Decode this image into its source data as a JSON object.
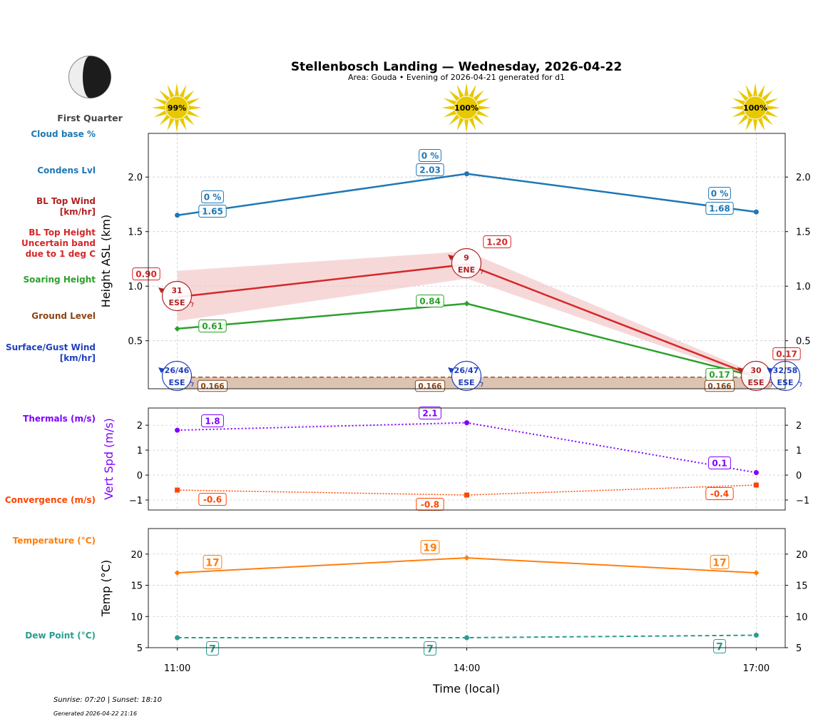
{
  "header": {
    "title": "Stellenbosch Landing — Wednesday, 2026-04-22",
    "subtitle": "Area: Gouda • Evening of 2026-04-21 generated for d1"
  },
  "moon": {
    "phase": "First Quarter",
    "icon": "moon-first-quarter-icon"
  },
  "sun": {
    "icon": "sun-icon",
    "values": [
      "99%",
      "100%",
      "100%"
    ]
  },
  "footer": {
    "sun_times": "Sunrise: 07:20 | Sunset: 18:10",
    "generated": "Generated 2026-04-22 21:16"
  },
  "side_labels": {
    "cloud_base": "Cloud base %",
    "condens": "Condens Lvl",
    "bl_top_wind": [
      "BL Top Wind",
      "[km/hr]"
    ],
    "bl_top_height": [
      "BL Top Height",
      "Uncertain band",
      "due to 1 deg C"
    ],
    "soaring": "Soaring Height",
    "ground": "Ground Level",
    "surface_wind": [
      "Surface/Gust Wind",
      "[km/hr]"
    ],
    "thermals": "Thermals (m/s)",
    "convergence": "Convergence (m/s)",
    "temperature": "Temperature (°C)",
    "dew_point": "Dew Point (°C)"
  },
  "colors": {
    "cloud": "#1f77b4",
    "bl_top": "#d62728",
    "band": "#f4c7c9",
    "soaring": "#2ca02c",
    "ground": "#8b4513",
    "ground_fill": "#dcc3b2",
    "surface_wind": "#1f3fbf",
    "thermals": "#7f00ff",
    "convergence": "#ff4500",
    "temperature": "#ff7f0e",
    "dew": "#2a9d8f",
    "sun": "#e8c800"
  },
  "chart_data": [
    {
      "type": "line",
      "ylabel": "Height ASL (km)",
      "x": [
        "11:00",
        "14:00",
        "17:00"
      ],
      "ylim": [
        0.06,
        2.4
      ],
      "yticks": [
        "0.5",
        "1.0",
        "1.5",
        "2.0"
      ],
      "grid": true,
      "series": [
        {
          "key": "condens",
          "values": [
            1.65,
            2.03,
            1.68
          ],
          "labels": [
            "1.65",
            "2.03",
            "1.68"
          ],
          "cloud_pct": [
            "0 %",
            "0 %",
            "0 %"
          ]
        },
        {
          "key": "bl_top",
          "values": [
            0.9,
            1.2,
            0.17
          ],
          "labels": [
            "0.90",
            "1.20",
            "0.17"
          ],
          "band_low": [
            0.68,
            1.07,
            0.15
          ],
          "band_high": [
            1.14,
            1.32,
            0.2
          ]
        },
        {
          "key": "soaring",
          "values": [
            0.61,
            0.84,
            0.17
          ],
          "labels": [
            "0.61",
            "0.84",
            "0.17"
          ]
        },
        {
          "key": "ground",
          "values": [
            0.166,
            0.166,
            0.166
          ],
          "labels": [
            "0.166",
            "0.166",
            "0.166"
          ]
        }
      ],
      "bl_top_wind": [
        {
          "speed": "31",
          "dir": "ESE"
        },
        {
          "speed": "9",
          "dir": "ENE"
        },
        {
          "speed": "30",
          "dir": "ESE"
        }
      ],
      "surface_wind": [
        {
          "speed": "26/46",
          "dir": "ESE"
        },
        {
          "speed": "26/47",
          "dir": "ESE"
        },
        {
          "speed": "32/58",
          "dir": "ESE"
        }
      ]
    },
    {
      "type": "line",
      "ylabel": "Vert Spd (m/s)",
      "x": [
        "11:00",
        "14:00",
        "17:00"
      ],
      "ylim": [
        -1.4,
        2.69
      ],
      "yticks": [
        "−1",
        "0",
        "1",
        "2"
      ],
      "grid": true,
      "series": [
        {
          "key": "thermals",
          "values": [
            1.8,
            2.1,
            0.1
          ],
          "labels": [
            "1.8",
            "2.1",
            "0.1"
          ]
        },
        {
          "key": "convergence",
          "values": [
            -0.6,
            -0.8,
            -0.4
          ],
          "labels": [
            "-0.6",
            "-0.8",
            "-0.4"
          ]
        }
      ]
    },
    {
      "type": "line",
      "ylabel": "Temp (°C)",
      "xlabel": "Time (local)",
      "x": [
        "11:00",
        "14:00",
        "17:00"
      ],
      "ylim": [
        5,
        24.1
      ],
      "yticks": [
        "5",
        "10",
        "15",
        "20"
      ],
      "grid": true,
      "series": [
        {
          "key": "temperature",
          "values": [
            17,
            19.4,
            17
          ],
          "labels": [
            "17",
            "19",
            "17"
          ]
        },
        {
          "key": "dew",
          "values": [
            6.6,
            6.6,
            7.0
          ],
          "labels": [
            "7",
            "7",
            "7"
          ]
        }
      ]
    }
  ]
}
